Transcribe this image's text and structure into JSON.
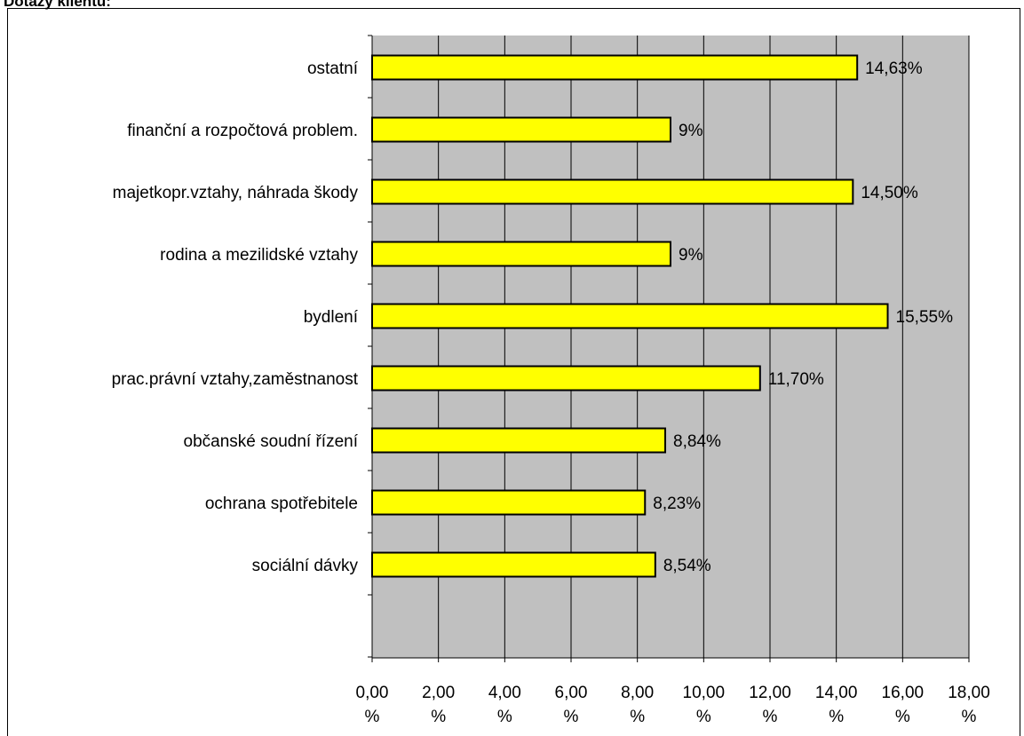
{
  "page": {
    "title": "Dotazy klientů:"
  },
  "chart_data": {
    "type": "bar",
    "orientation": "horizontal",
    "title": "",
    "xlabel": "",
    "ylabel": "",
    "categories": [
      "sociální dávky",
      "ochrana spotřebitele",
      "občanské soudní řízení",
      "prac.právní vztahy,zaměstnanost",
      "bydlení",
      "rodina a mezilidské vztahy",
      "majetkopr.vztahy, náhrada škody",
      "finanční a rozpočtová problem.",
      "ostatní"
    ],
    "values": [
      8.54,
      8.23,
      8.84,
      11.7,
      15.55,
      9.0,
      14.5,
      9.0,
      14.63
    ],
    "value_labels": [
      "8,54%",
      "8,23%",
      "8,84%",
      "11,70%",
      "15,55%",
      "9%",
      "14,50%",
      "9%",
      "14,63%"
    ],
    "xlim": [
      0,
      18
    ],
    "x_ticks": [
      0,
      2,
      4,
      6,
      8,
      10,
      12,
      14,
      16,
      18
    ],
    "x_tick_labels": [
      [
        "0,00",
        "%"
      ],
      [
        "2,00",
        "%"
      ],
      [
        "4,00",
        "%"
      ],
      [
        "6,00",
        "%"
      ],
      [
        "8,00",
        "%"
      ],
      [
        "10,00",
        "%"
      ],
      [
        "12,00",
        "%"
      ],
      [
        "14,00",
        "%"
      ],
      [
        "16,00",
        "%"
      ],
      [
        "18,00",
        "%"
      ]
    ],
    "grid": true,
    "legend": "none",
    "colors": {
      "bar_fill": "#ffff00",
      "bar_stroke": "#000000",
      "plot_background": "#c0c0c0",
      "grid": "#000000"
    }
  }
}
